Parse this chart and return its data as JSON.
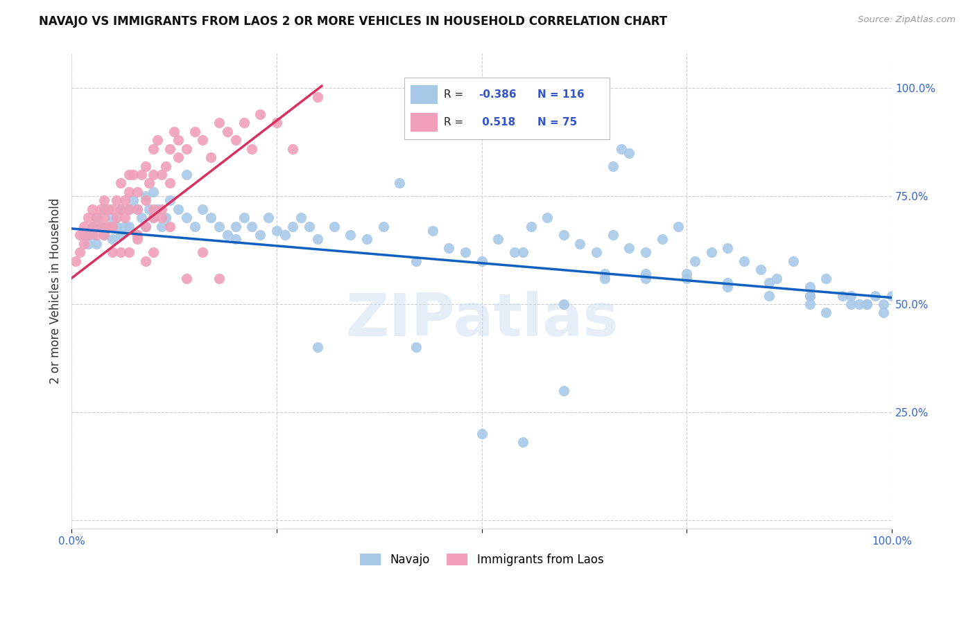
{
  "title": "NAVAJO VS IMMIGRANTS FROM LAOS 2 OR MORE VEHICLES IN HOUSEHOLD CORRELATION CHART",
  "source": "Source: ZipAtlas.com",
  "ylabel": "2 or more Vehicles in Household",
  "xlim": [
    0.0,
    1.0
  ],
  "ylim": [
    -0.02,
    1.08
  ],
  "navajo_R": -0.386,
  "navajo_N": 116,
  "laos_R": 0.518,
  "laos_N": 75,
  "navajo_color": "#a8c8e8",
  "laos_color": "#f0a0b8",
  "navajo_line_color": "#1060c0",
  "laos_line_color": "#d83060",
  "watermark": "ZIPatlas",
  "navajo_line_x0": 0.0,
  "navajo_line_y0": 0.675,
  "navajo_line_x1": 1.0,
  "navajo_line_y1": 0.515,
  "laos_line_x0": 0.0,
  "laos_line_y0": 0.56,
  "laos_line_x1": 0.305,
  "laos_line_y1": 1.005,
  "navajo_scatter_x": [
    0.015,
    0.02,
    0.025,
    0.025,
    0.03,
    0.03,
    0.035,
    0.04,
    0.04,
    0.045,
    0.05,
    0.05,
    0.055,
    0.06,
    0.06,
    0.065,
    0.07,
    0.07,
    0.075,
    0.08,
    0.08,
    0.085,
    0.09,
    0.09,
    0.095,
    0.1,
    0.1,
    0.105,
    0.11,
    0.115,
    0.12,
    0.13,
    0.14,
    0.15,
    0.16,
    0.17,
    0.18,
    0.19,
    0.2,
    0.21,
    0.22,
    0.23,
    0.24,
    0.25,
    0.26,
    0.27,
    0.28,
    0.29,
    0.3,
    0.32,
    0.34,
    0.36,
    0.38,
    0.4,
    0.42,
    0.44,
    0.46,
    0.48,
    0.5,
    0.52,
    0.54,
    0.56,
    0.58,
    0.6,
    0.62,
    0.64,
    0.66,
    0.68,
    0.7,
    0.72,
    0.74,
    0.76,
    0.78,
    0.8,
    0.82,
    0.84,
    0.86,
    0.88,
    0.9,
    0.92,
    0.94,
    0.96,
    0.98,
    1.0,
    0.66,
    0.67,
    0.68,
    0.5,
    0.55,
    0.6,
    0.65,
    0.7,
    0.75,
    0.8,
    0.85,
    0.9,
    0.92,
    0.95,
    0.97,
    0.99,
    0.14,
    0.2,
    0.3,
    0.42,
    0.55,
    0.65,
    0.75,
    0.85,
    0.9,
    0.95,
    0.97,
    0.99,
    0.6,
    0.7,
    0.8,
    0.9
  ],
  "navajo_scatter_y": [
    0.66,
    0.64,
    0.68,
    0.66,
    0.7,
    0.64,
    0.68,
    0.72,
    0.66,
    0.68,
    0.7,
    0.65,
    0.68,
    0.72,
    0.66,
    0.68,
    0.72,
    0.68,
    0.74,
    0.72,
    0.66,
    0.7,
    0.75,
    0.68,
    0.72,
    0.76,
    0.7,
    0.72,
    0.68,
    0.7,
    0.74,
    0.72,
    0.7,
    0.68,
    0.72,
    0.7,
    0.68,
    0.66,
    0.68,
    0.7,
    0.68,
    0.66,
    0.7,
    0.67,
    0.66,
    0.68,
    0.7,
    0.68,
    0.65,
    0.68,
    0.66,
    0.65,
    0.68,
    0.78,
    0.6,
    0.67,
    0.63,
    0.62,
    0.6,
    0.65,
    0.62,
    0.68,
    0.7,
    0.66,
    0.64,
    0.62,
    0.66,
    0.63,
    0.62,
    0.65,
    0.68,
    0.6,
    0.62,
    0.63,
    0.6,
    0.58,
    0.56,
    0.6,
    0.54,
    0.56,
    0.52,
    0.5,
    0.52,
    0.52,
    0.82,
    0.86,
    0.85,
    0.2,
    0.18,
    0.3,
    0.56,
    0.56,
    0.56,
    0.54,
    0.52,
    0.52,
    0.48,
    0.52,
    0.5,
    0.5,
    0.8,
    0.65,
    0.4,
    0.4,
    0.62,
    0.57,
    0.57,
    0.55,
    0.52,
    0.5,
    0.5,
    0.48,
    0.5,
    0.57,
    0.55,
    0.5
  ],
  "laos_scatter_x": [
    0.005,
    0.01,
    0.01,
    0.015,
    0.015,
    0.02,
    0.02,
    0.025,
    0.025,
    0.03,
    0.03,
    0.035,
    0.035,
    0.04,
    0.04,
    0.04,
    0.045,
    0.045,
    0.05,
    0.05,
    0.055,
    0.055,
    0.06,
    0.06,
    0.065,
    0.065,
    0.07,
    0.07,
    0.075,
    0.08,
    0.08,
    0.085,
    0.09,
    0.09,
    0.095,
    0.1,
    0.1,
    0.1,
    0.105,
    0.11,
    0.11,
    0.115,
    0.12,
    0.12,
    0.125,
    0.13,
    0.13,
    0.14,
    0.15,
    0.16,
    0.17,
    0.18,
    0.19,
    0.2,
    0.21,
    0.22,
    0.23,
    0.25,
    0.27,
    0.3,
    0.07,
    0.08,
    0.09,
    0.1,
    0.11,
    0.05,
    0.06,
    0.07,
    0.08,
    0.09,
    0.1,
    0.12,
    0.14,
    0.16,
    0.18
  ],
  "laos_scatter_y": [
    0.6,
    0.62,
    0.66,
    0.64,
    0.68,
    0.66,
    0.7,
    0.68,
    0.72,
    0.66,
    0.7,
    0.68,
    0.72,
    0.7,
    0.74,
    0.66,
    0.72,
    0.68,
    0.72,
    0.68,
    0.74,
    0.7,
    0.72,
    0.78,
    0.7,
    0.74,
    0.76,
    0.72,
    0.8,
    0.76,
    0.72,
    0.8,
    0.74,
    0.82,
    0.78,
    0.8,
    0.86,
    0.72,
    0.88,
    0.8,
    0.7,
    0.82,
    0.86,
    0.78,
    0.9,
    0.84,
    0.88,
    0.86,
    0.9,
    0.88,
    0.84,
    0.92,
    0.9,
    0.88,
    0.92,
    0.86,
    0.94,
    0.92,
    0.86,
    0.98,
    0.62,
    0.65,
    0.68,
    0.62,
    0.72,
    0.62,
    0.62,
    0.8,
    0.66,
    0.6,
    0.7,
    0.68,
    0.56,
    0.62,
    0.56
  ]
}
